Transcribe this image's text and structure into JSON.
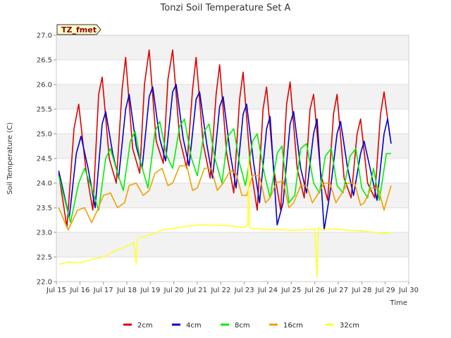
{
  "chart_data": {
    "type": "line",
    "title": "Tonzi Soil Temperature Set A",
    "xlabel": "Time",
    "ylabel": "Soil Temperature (C)",
    "site_label": "TZ_fmet",
    "xlim": [
      15,
      30
    ],
    "ylim": [
      22.0,
      27.0
    ],
    "grid": true,
    "legend_position": "bottom",
    "x_tick_values": [
      15,
      16,
      17,
      18,
      19,
      20,
      21,
      22,
      23,
      24,
      25,
      26,
      27,
      28,
      29,
      30
    ],
    "x_tick_labels": [
      "Jul 15",
      "Jul 16",
      "Jul 17",
      "Jul 18",
      "Jul 19",
      "Jul 20",
      "Jul 21",
      "Jul 22",
      "Jul 23",
      "Jul 24",
      "Jul 25",
      "Jul 26",
      "Jul 27",
      "Jul 28",
      "Jul 29",
      "Jul 30"
    ],
    "y_tick_values": [
      22.0,
      22.5,
      23.0,
      23.5,
      24.0,
      24.5,
      25.0,
      25.5,
      26.0,
      26.5,
      27.0
    ],
    "y_tick_labels": [
      "22.0",
      "22.5",
      "23.0",
      "23.5",
      "24.0",
      "24.5",
      "25.0",
      "25.5",
      "26.0",
      "26.5",
      "27.0"
    ],
    "series": [
      {
        "name": "2cm",
        "color": "#dd0000",
        "x": [
          15.1,
          15.45,
          15.75,
          15.95,
          16.25,
          16.55,
          16.8,
          16.95,
          17.25,
          17.55,
          17.8,
          17.95,
          18.25,
          18.55,
          18.75,
          18.95,
          19.25,
          19.55,
          19.75,
          19.95,
          20.25,
          20.55,
          20.8,
          20.95,
          21.25,
          21.55,
          21.8,
          21.95,
          22.25,
          22.55,
          22.8,
          22.95,
          23.25,
          23.55,
          23.8,
          23.95,
          24.25,
          24.55,
          24.8,
          24.95,
          25.25,
          25.55,
          25.8,
          25.95,
          26.25,
          26.55,
          26.8,
          26.95,
          27.25,
          27.55,
          27.8,
          27.95,
          28.25,
          28.55,
          28.8,
          28.95,
          29.2
        ],
        "y": [
          24.2,
          23.1,
          25.1,
          25.6,
          24.3,
          23.45,
          25.8,
          26.15,
          24.5,
          24.0,
          25.9,
          26.55,
          24.7,
          24.2,
          26.0,
          26.7,
          24.85,
          24.4,
          26.1,
          26.7,
          24.9,
          24.3,
          25.9,
          26.55,
          24.8,
          24.1,
          25.8,
          26.4,
          24.6,
          23.8,
          25.7,
          26.25,
          24.4,
          23.45,
          25.5,
          25.95,
          24.3,
          23.45,
          25.6,
          26.05,
          24.3,
          23.7,
          25.5,
          25.8,
          24.2,
          23.65,
          25.4,
          25.8,
          24.1,
          23.7,
          25.0,
          25.3,
          24.0,
          23.7,
          25.4,
          25.85,
          24.95
        ]
      },
      {
        "name": "4cm",
        "color": "#0000cc",
        "x": [
          15.1,
          15.55,
          15.85,
          16.05,
          16.35,
          16.65,
          16.95,
          17.1,
          17.4,
          17.65,
          17.95,
          18.1,
          18.4,
          18.65,
          18.95,
          19.1,
          19.4,
          19.65,
          19.95,
          20.1,
          20.4,
          20.65,
          20.95,
          21.1,
          21.4,
          21.65,
          21.95,
          22.1,
          22.4,
          22.65,
          22.95,
          23.1,
          23.4,
          23.65,
          23.95,
          24.1,
          24.4,
          24.65,
          24.95,
          25.1,
          25.4,
          25.65,
          25.95,
          26.1,
          26.4,
          26.65,
          26.95,
          27.1,
          27.4,
          27.65,
          27.95,
          28.1,
          28.4,
          28.65,
          28.95,
          29.1,
          29.25
        ],
        "y": [
          24.25,
          23.3,
          24.6,
          24.95,
          24.3,
          23.5,
          25.2,
          25.45,
          24.6,
          24.1,
          25.5,
          25.8,
          24.75,
          24.3,
          25.75,
          25.95,
          24.9,
          24.45,
          25.85,
          26.0,
          24.9,
          24.35,
          25.7,
          25.85,
          24.8,
          24.1,
          25.55,
          25.75,
          24.6,
          23.9,
          25.4,
          25.6,
          24.4,
          23.6,
          25.1,
          25.35,
          23.15,
          23.6,
          25.2,
          25.45,
          24.3,
          23.8,
          25.0,
          25.3,
          23.05,
          23.8,
          25.0,
          25.25,
          24.3,
          23.75,
          24.6,
          24.85,
          24.2,
          23.65,
          25.0,
          25.3,
          24.8
        ]
      },
      {
        "name": "8cm",
        "color": "#00ee00",
        "x": [
          15.1,
          15.6,
          15.95,
          16.2,
          16.5,
          16.8,
          17.1,
          17.3,
          17.6,
          17.85,
          18.15,
          18.35,
          18.6,
          18.9,
          19.2,
          19.4,
          19.7,
          19.95,
          20.25,
          20.45,
          20.75,
          21.0,
          21.3,
          21.5,
          21.75,
          22.05,
          22.3,
          22.55,
          22.8,
          23.05,
          23.35,
          23.55,
          23.85,
          24.1,
          24.4,
          24.6,
          24.9,
          25.15,
          25.4,
          25.65,
          25.95,
          26.2,
          26.45,
          26.7,
          26.95,
          27.2,
          27.5,
          27.75,
          28.0,
          28.25,
          28.5,
          28.75,
          29.05,
          29.25
        ],
        "y": [
          24.15,
          23.2,
          24.0,
          24.3,
          23.9,
          23.45,
          24.5,
          24.7,
          24.2,
          23.85,
          24.85,
          25.05,
          24.4,
          23.9,
          25.05,
          25.25,
          24.55,
          24.3,
          25.15,
          25.3,
          24.5,
          24.15,
          25.05,
          25.2,
          24.5,
          24.0,
          24.95,
          25.1,
          24.4,
          23.95,
          24.85,
          25.0,
          24.2,
          23.7,
          24.6,
          24.75,
          23.6,
          23.75,
          24.7,
          24.8,
          24.0,
          23.8,
          24.55,
          24.7,
          23.95,
          23.8,
          24.55,
          24.7,
          23.9,
          23.7,
          24.3,
          23.65,
          24.6,
          24.6
        ]
      },
      {
        "name": "16cm",
        "color": "#f0a000",
        "x": [
          15.1,
          15.5,
          15.9,
          16.2,
          16.5,
          16.75,
          17.0,
          17.3,
          17.6,
          17.9,
          18.1,
          18.4,
          18.7,
          18.95,
          19.2,
          19.5,
          19.75,
          19.95,
          20.25,
          20.55,
          20.8,
          21.0,
          21.3,
          21.6,
          21.85,
          22.1,
          22.4,
          22.65,
          22.9,
          23.1,
          23.35,
          23.65,
          23.9,
          24.1,
          24.35,
          24.65,
          24.9,
          25.1,
          25.4,
          25.65,
          25.9,
          26.1,
          26.4,
          26.65,
          26.9,
          27.1,
          27.4,
          27.7,
          27.95,
          28.1,
          28.4,
          28.7,
          28.95,
          29.25
        ],
        "y": [
          23.5,
          23.05,
          23.45,
          23.5,
          23.2,
          23.45,
          23.75,
          23.8,
          23.5,
          23.6,
          23.95,
          24.0,
          23.75,
          23.85,
          24.2,
          24.3,
          23.95,
          24.0,
          24.35,
          24.35,
          23.85,
          23.9,
          24.3,
          24.3,
          23.85,
          24.0,
          24.25,
          24.2,
          23.75,
          23.75,
          24.15,
          24.15,
          23.6,
          23.7,
          24.0,
          24.05,
          23.5,
          23.6,
          23.95,
          23.95,
          23.6,
          23.75,
          24.0,
          24.0,
          23.6,
          23.75,
          24.0,
          24.0,
          23.55,
          23.6,
          23.9,
          23.9,
          23.45,
          23.95
        ]
      },
      {
        "name": "32cm",
        "color": "#ffff33",
        "x": [
          15.1,
          15.5,
          16.0,
          16.5,
          17.0,
          17.3,
          17.6,
          18.0,
          18.3,
          18.4,
          18.45,
          18.5,
          18.6,
          19.0,
          19.3,
          19.5,
          20.0,
          20.5,
          21.0,
          21.5,
          22.0,
          22.5,
          23.0,
          23.15,
          23.18,
          23.22,
          23.3,
          23.5,
          24.0,
          24.5,
          25.0,
          25.5,
          26.0,
          26.1,
          26.15,
          26.2,
          26.3,
          26.5,
          27.0,
          27.5,
          28.0,
          28.5,
          29.0,
          29.25
        ],
        "y": [
          22.35,
          22.4,
          22.38,
          22.45,
          22.5,
          22.58,
          22.65,
          22.72,
          22.8,
          22.35,
          22.85,
          22.88,
          22.9,
          22.95,
          23.0,
          23.05,
          23.08,
          23.12,
          23.15,
          23.15,
          23.14,
          23.13,
          23.1,
          23.15,
          24.5,
          23.1,
          23.08,
          23.08,
          23.05,
          23.06,
          23.04,
          23.05,
          23.06,
          22.1,
          23.1,
          23.07,
          23.05,
          23.07,
          23.06,
          23.04,
          23.03,
          23.0,
          22.98,
          23.0
        ]
      }
    ]
  }
}
